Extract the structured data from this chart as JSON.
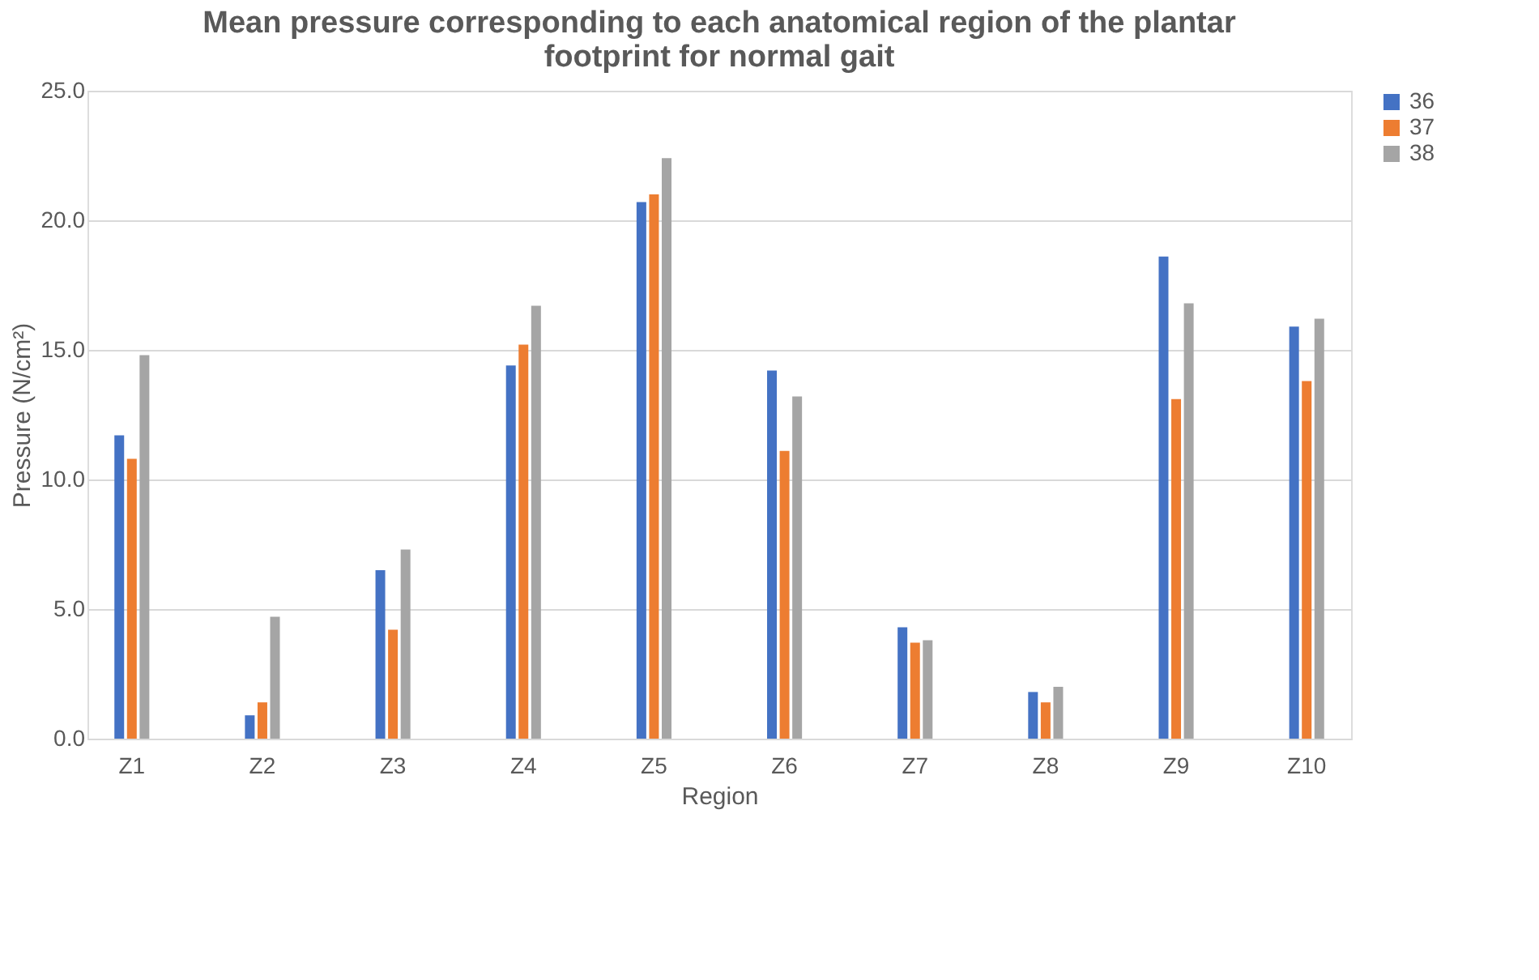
{
  "chart_data": {
    "type": "bar",
    "title": [
      "Mean pressure corresponding to each anatomical region of the plantar",
      "footprint for normal gait"
    ],
    "xlabel": "Region",
    "ylabel": "Pressure (N/cm²)",
    "categories": [
      "Z1",
      "Z2",
      "Z3",
      "Z4",
      "Z5",
      "Z6",
      "Z7",
      "Z8",
      "Z9",
      "Z10"
    ],
    "series": [
      {
        "name": "36",
        "color": "#4472c4",
        "values": [
          11.7,
          0.9,
          6.5,
          14.4,
          20.7,
          14.2,
          4.3,
          1.8,
          18.6,
          15.9
        ]
      },
      {
        "name": "37",
        "color": "#ed7d31",
        "values": [
          10.8,
          1.4,
          4.2,
          15.2,
          21.0,
          11.1,
          3.7,
          1.4,
          13.1,
          13.8
        ]
      },
      {
        "name": "38",
        "color": "#a5a5a5",
        "values": [
          14.8,
          4.7,
          7.3,
          16.7,
          22.4,
          13.2,
          3.8,
          2.0,
          16.8,
          16.2
        ]
      }
    ],
    "ylim": [
      0,
      25
    ],
    "yticks": [
      {
        "value": 0,
        "label": "0.0"
      },
      {
        "value": 5,
        "label": "5.0"
      },
      {
        "value": 10,
        "label": "10.0"
      },
      {
        "value": 15,
        "label": "15.0"
      },
      {
        "value": 20,
        "label": "20.0"
      },
      {
        "value": 25,
        "label": "25.0"
      }
    ],
    "grid": "y",
    "legend": "right"
  }
}
